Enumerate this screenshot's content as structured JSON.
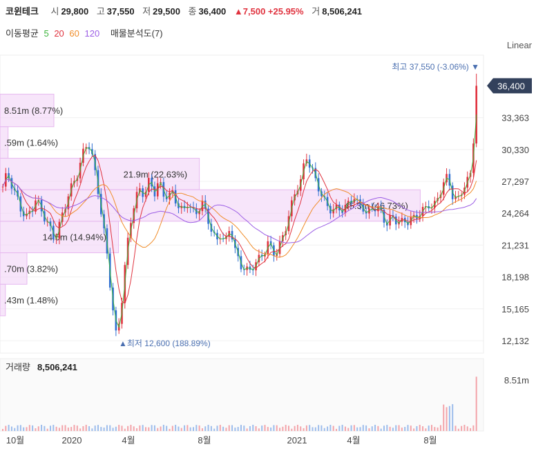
{
  "header": {
    "name": "코윈테크",
    "open_label": "시",
    "open": "29,800",
    "high_label": "고",
    "high": "37,550",
    "low_label": "저",
    "low": "29,500",
    "close_label": "종",
    "close": "36,400",
    "change": "▲7,500 +25.95%",
    "vol_label": "거",
    "vol": "8,506,241"
  },
  "indicators": {
    "label": "이동평균",
    "ma5": "5",
    "ma20": "20",
    "ma60": "60",
    "ma120": "120",
    "vp": "매물분석도(7)"
  },
  "colors": {
    "up": "#e0323e",
    "down": "#2f6fd1",
    "ma5": "#3cb43c",
    "ma20": "#e0323e",
    "ma60": "#f08c28",
    "ma120": "#9b5de5",
    "vp": "#f2d4f7"
  },
  "scale_mode": "Linear",
  "chart_data": {
    "type": "candlestick",
    "ylim": [
      12132,
      38000
    ],
    "y_ticks": [
      "12,132",
      "15,165",
      "18,198",
      "21,231",
      "24,264",
      "27,297",
      "30,330",
      "33,363"
    ],
    "last_price_label": "36,400",
    "x_ticks": [
      "10월",
      "2020",
      "4월",
      "8월",
      "2021",
      "4월",
      "8월"
    ],
    "high_annotation": "최고 37,550 (-3.06%)",
    "low_annotation": "▲최저 12,600 (188.89%)",
    "volume_title": "거래량",
    "volume_value": "8,506,241",
    "volume_tick": "8.51m",
    "volume_profile": [
      {
        "label": "8.51m (8.77%)",
        "low": 32500,
        "high": 35600,
        "share": 0.1
      },
      {
        "label": ".59m (1.64%)",
        "low": 29500,
        "high": 32500,
        "share": 0.015
      },
      {
        "label": "21.9m (22.63%)",
        "low": 26500,
        "high": 29500,
        "share": 0.37
      },
      {
        "label": "45.3m (46.73%)",
        "low": 23500,
        "high": 26500,
        "share": 0.78
      },
      {
        "label": "14.5m (14.94%)",
        "low": 20500,
        "high": 23500,
        "share": 0.22
      },
      {
        "label": ".70m (3.82%)",
        "low": 17500,
        "high": 20500,
        "share": 0.05
      },
      {
        "label": ".43m (1.48%)",
        "low": 14500,
        "high": 17500,
        "share": 0.01
      }
    ],
    "close_path": [
      26500,
      28000,
      27200,
      25800,
      24200,
      23600,
      24800,
      25900,
      24500,
      23400,
      22800,
      22100,
      23200,
      24400,
      26100,
      27500,
      28600,
      29800,
      30900,
      29500,
      27200,
      23500,
      20100,
      16000,
      12600,
      15500,
      19800,
      23400,
      25900,
      26800,
      25900,
      27100,
      26300,
      27600,
      26100,
      25400,
      26200,
      25200,
      24600,
      25100,
      24000,
      24600,
      25600,
      24100,
      22400,
      21500,
      22700,
      21400,
      22800,
      20600,
      19700,
      19300,
      18400,
      19100,
      19900,
      20800,
      21400,
      20100,
      20600,
      22100,
      23600,
      24800,
      26400,
      27600,
      30100,
      28600,
      27100,
      26400,
      25600,
      24800,
      24200,
      24600,
      24900,
      25400,
      25800,
      24700,
      25100,
      24300,
      24800,
      24500,
      24100,
      23600,
      24000,
      23400,
      23100,
      23700,
      24000,
      23600,
      24000,
      24600,
      25500,
      24800,
      25600,
      26900,
      28100,
      26100,
      25100,
      26300,
      27300,
      28700,
      36400
    ]
  }
}
